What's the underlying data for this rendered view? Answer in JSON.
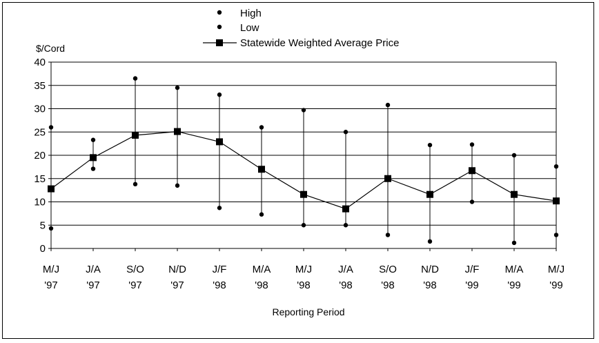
{
  "chart_data": {
    "type": "line",
    "title": "",
    "xlabel": "Reporting Period",
    "ylabel": "$/Cord",
    "ylim": [
      0,
      40
    ],
    "yticks": [
      0,
      5,
      10,
      15,
      20,
      25,
      30,
      35,
      40
    ],
    "grid": true,
    "legend_position": "top-center",
    "categories": [
      [
        "M/J",
        "'97"
      ],
      [
        "J/A",
        "'97"
      ],
      [
        "S/O",
        "'97"
      ],
      [
        "N/D",
        "'97"
      ],
      [
        "J/F",
        "'98"
      ],
      [
        "M/A",
        "'98"
      ],
      [
        "M/J",
        "'98"
      ],
      [
        "J/A",
        "'98"
      ],
      [
        "S/O",
        "'98"
      ],
      [
        "N/D",
        "'98"
      ],
      [
        "J/F",
        "'99"
      ],
      [
        "M/A",
        "'99"
      ],
      [
        "M/J",
        "'99"
      ]
    ],
    "series": [
      {
        "name": "High",
        "marker": "dot",
        "values": [
          26.0,
          23.3,
          36.5,
          34.5,
          33.0,
          26.0,
          29.7,
          25.0,
          30.8,
          22.2,
          22.3,
          20.0,
          17.6
        ]
      },
      {
        "name": "Low",
        "marker": "dot",
        "values": [
          4.3,
          17.1,
          13.8,
          13.5,
          8.7,
          7.3,
          5.0,
          5.0,
          2.9,
          1.5,
          10.0,
          1.2,
          2.9
        ]
      },
      {
        "name": "Statewide Weighted Average Price",
        "marker": "square",
        "line": true,
        "values": [
          12.8,
          19.5,
          24.3,
          25.1,
          22.9,
          17.0,
          11.6,
          8.5,
          15.0,
          11.6,
          16.7,
          11.6,
          10.2
        ]
      }
    ],
    "colors": {
      "grid": "#000000",
      "line": "#000000",
      "marker": "#000000"
    }
  }
}
